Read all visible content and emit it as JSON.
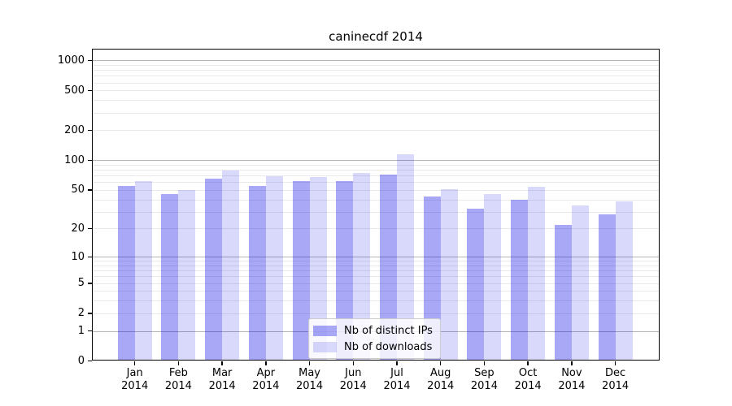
{
  "chart_data": {
    "type": "bar",
    "title": "caninecdf 2014",
    "categories": [
      "Jan 2014",
      "Feb 2014",
      "Mar 2014",
      "Apr 2014",
      "May 2014",
      "Jun 2014",
      "Jul 2014",
      "Aug 2014",
      "Sep 2014",
      "Oct 2014",
      "Nov 2014",
      "Dec 2014"
    ],
    "series": [
      {
        "name": "Nb of distinct IPs",
        "color": "rgba(0,0,230,0.34)",
        "values": [
          55,
          45,
          65,
          55,
          61,
          62,
          71,
          43,
          32,
          40,
          22,
          28
        ]
      },
      {
        "name": "Nb of downloads",
        "color": "rgba(0,0,230,0.15)",
        "values": [
          62,
          50,
          78,
          69,
          67,
          75,
          114,
          51,
          45,
          54,
          35,
          38
        ]
      }
    ],
    "xlabel": "",
    "ylabel": "",
    "yscale": "log(1+v)",
    "yticks": [
      1000,
      500,
      200,
      100,
      50,
      20,
      10,
      5,
      2,
      1,
      0
    ],
    "ylim": [
      0,
      1300
    ],
    "grid": "horizontal log gridlines, major at decades, minor at 2-9 steps",
    "legend_position": "lower center"
  },
  "colors": {
    "bar_dark": "rgba(0,0,230,0.34)",
    "bar_light": "rgba(0,0,230,0.15)",
    "grid_major": "#b4b4b4",
    "grid_minor": "#e9e9e9",
    "axis": "#000000",
    "background": "#ffffff"
  }
}
